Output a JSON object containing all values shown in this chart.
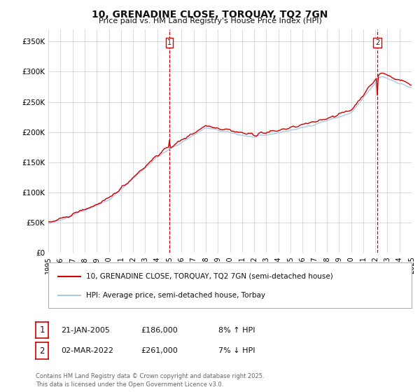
{
  "title": "10, GRENADINE CLOSE, TORQUAY, TQ2 7GN",
  "subtitle": "Price paid vs. HM Land Registry's House Price Index (HPI)",
  "ylim": [
    0,
    370000
  ],
  "yticks": [
    0,
    50000,
    100000,
    150000,
    200000,
    250000,
    300000,
    350000
  ],
  "ytick_labels": [
    "£0",
    "£50K",
    "£100K",
    "£150K",
    "£200K",
    "£250K",
    "£300K",
    "£350K"
  ],
  "hpi_color": "#aac8e8",
  "price_color": "#cc0000",
  "legend_line1": "10, GRENADINE CLOSE, TORQUAY, TQ2 7GN (semi-detached house)",
  "legend_line2": "HPI: Average price, semi-detached house, Torbay",
  "footnote": "Contains HM Land Registry data © Crown copyright and database right 2025.\nThis data is licensed under the Open Government Licence v3.0.",
  "background_color": "#ffffff",
  "grid_color": "#cccccc",
  "marker1_date": "21-JAN-2005",
  "marker1_price": "£186,000",
  "marker1_hpi": "8% ↑ HPI",
  "marker2_date": "02-MAR-2022",
  "marker2_price": "£261,000",
  "marker2_hpi": "7% ↓ HPI"
}
